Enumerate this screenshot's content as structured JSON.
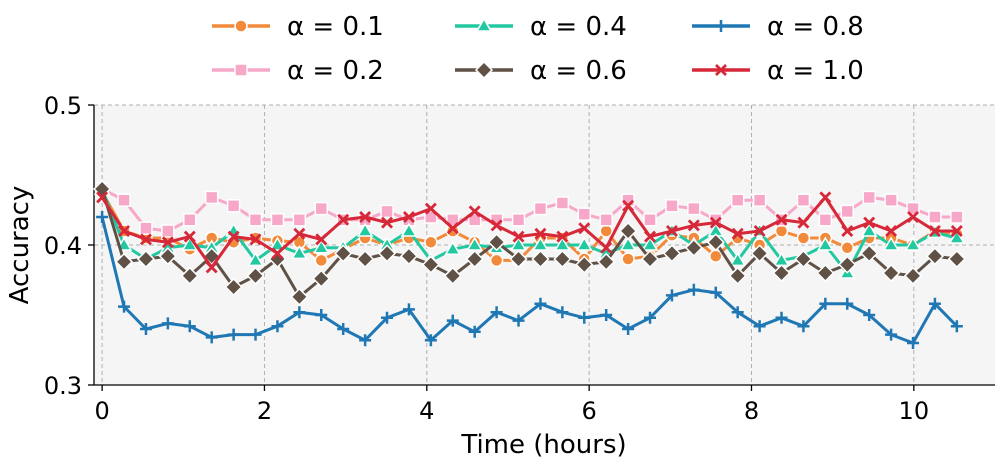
{
  "chart_data": {
    "type": "line",
    "title": "",
    "xlabel": "Time (hours)",
    "ylabel": "Accuracy",
    "xlim": [
      -0.1,
      11.0
    ],
    "ylim": [
      0.3,
      0.5
    ],
    "xticks": [
      0,
      2,
      4,
      6,
      8,
      10
    ],
    "xtick_labels": [
      "0",
      "2",
      "4",
      "6",
      "8",
      "10"
    ],
    "yticks": [
      0.3,
      0.4,
      0.5
    ],
    "ytick_labels": [
      "0.3",
      "0.4",
      "0.5"
    ],
    "grid": true,
    "legend_position": "top",
    "x": [
      0.0,
      0.27,
      0.54,
      0.81,
      1.08,
      1.35,
      1.62,
      1.89,
      2.16,
      2.43,
      2.7,
      2.97,
      3.24,
      3.51,
      3.78,
      4.05,
      4.32,
      4.59,
      4.86,
      5.13,
      5.4,
      5.67,
      5.94,
      6.21,
      6.48,
      6.75,
      7.02,
      7.29,
      7.56,
      7.83,
      8.1,
      8.37,
      8.64,
      8.91,
      9.18,
      9.45,
      9.72,
      9.99,
      10.26,
      10.53
    ],
    "series": [
      {
        "name": "α = 0.1",
        "color": "#f28a3c",
        "marker": "circle",
        "values": [
          0.438,
          0.41,
          0.405,
          0.405,
          0.397,
          0.405,
          0.402,
          0.405,
          0.403,
          0.402,
          0.389,
          0.397,
          0.405,
          0.4,
          0.405,
          0.402,
          0.41,
          0.402,
          0.389,
          0.389,
          0.405,
          0.405,
          0.39,
          0.41,
          0.39,
          0.392,
          0.407,
          0.405,
          0.392,
          0.405,
          0.4,
          0.41,
          0.405,
          0.405,
          0.398,
          0.405,
          0.405,
          0.4,
          0.41,
          0.408
        ]
      },
      {
        "name": "α = 0.2",
        "color": "#f7a8c8",
        "marker": "square",
        "values": [
          0.44,
          0.432,
          0.412,
          0.41,
          0.418,
          0.434,
          0.428,
          0.418,
          0.418,
          0.418,
          0.426,
          0.418,
          0.418,
          0.424,
          0.418,
          0.42,
          0.418,
          0.418,
          0.418,
          0.418,
          0.426,
          0.43,
          0.422,
          0.418,
          0.432,
          0.418,
          0.428,
          0.426,
          0.418,
          0.432,
          0.432,
          0.418,
          0.432,
          0.418,
          0.424,
          0.434,
          0.432,
          0.426,
          0.42,
          0.42
        ]
      },
      {
        "name": "α = 0.4",
        "color": "#22c9a0",
        "marker": "triangle",
        "values": [
          0.44,
          0.4,
          0.39,
          0.398,
          0.4,
          0.398,
          0.41,
          0.389,
          0.4,
          0.394,
          0.398,
          0.398,
          0.41,
          0.4,
          0.41,
          0.389,
          0.397,
          0.4,
          0.398,
          0.4,
          0.4,
          0.4,
          0.4,
          0.394,
          0.4,
          0.4,
          0.41,
          0.4,
          0.41,
          0.389,
          0.41,
          0.389,
          0.392,
          0.4,
          0.38,
          0.41,
          0.4,
          0.4,
          0.409,
          0.405
        ]
      },
      {
        "name": "α = 0.6",
        "color": "#5f5145",
        "marker": "diamond",
        "values": [
          0.44,
          0.388,
          0.39,
          0.392,
          0.378,
          0.392,
          0.37,
          0.378,
          0.39,
          0.363,
          0.376,
          0.394,
          0.39,
          0.394,
          0.392,
          0.386,
          0.378,
          0.39,
          0.402,
          0.39,
          0.39,
          0.39,
          0.386,
          0.388,
          0.41,
          0.39,
          0.394,
          0.398,
          0.402,
          0.378,
          0.394,
          0.38,
          0.39,
          0.38,
          0.386,
          0.394,
          0.38,
          0.378,
          0.392,
          0.39
        ]
      },
      {
        "name": "α = 0.8",
        "color": "#1f77b4",
        "marker": "plus",
        "values": [
          0.42,
          0.356,
          0.34,
          0.344,
          0.342,
          0.334,
          0.336,
          0.336,
          0.342,
          0.352,
          0.35,
          0.34,
          0.332,
          0.348,
          0.354,
          0.332,
          0.346,
          0.338,
          0.352,
          0.346,
          0.358,
          0.352,
          0.348,
          0.35,
          0.34,
          0.348,
          0.364,
          0.368,
          0.366,
          0.352,
          0.342,
          0.348,
          0.342,
          0.358,
          0.358,
          0.35,
          0.336,
          0.33,
          0.358,
          0.342
        ]
      },
      {
        "name": "α = 1.0",
        "color": "#d62839",
        "marker": "x",
        "values": [
          0.434,
          0.41,
          0.404,
          0.402,
          0.406,
          0.384,
          0.406,
          0.404,
          0.394,
          0.408,
          0.404,
          0.418,
          0.42,
          0.416,
          0.42,
          0.426,
          0.412,
          0.424,
          0.414,
          0.406,
          0.408,
          0.406,
          0.412,
          0.398,
          0.428,
          0.406,
          0.41,
          0.414,
          0.416,
          0.408,
          0.41,
          0.418,
          0.416,
          0.434,
          0.41,
          0.416,
          0.41,
          0.42,
          0.41,
          0.41
        ]
      }
    ]
  }
}
